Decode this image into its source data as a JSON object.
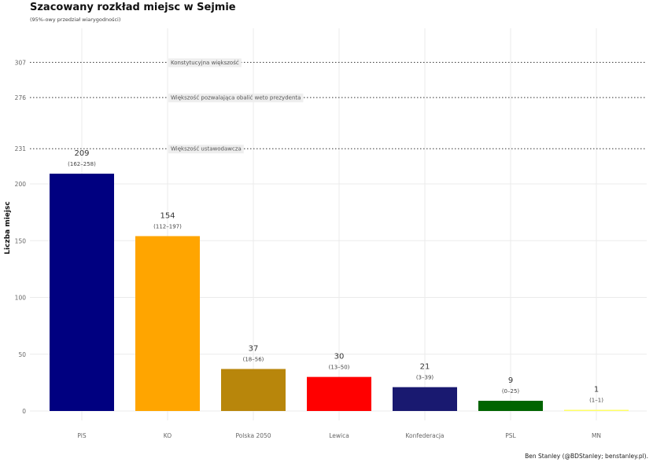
{
  "chart_data": {
    "type": "bar",
    "title": "Szacowany rozkład miejsc w Sejmie",
    "subtitle": "(95%-owy przedział wiarygodności)",
    "xlabel": "",
    "ylabel": "Liczba miejsc",
    "caption": "Ben Stanley (@BDStanley; benstanley.pl).",
    "ylim": [
      0,
      320
    ],
    "y_ticks": [
      0,
      50,
      100,
      150,
      200
    ],
    "grid": true,
    "categories": [
      "PiS",
      "KO",
      "Polska 2050",
      "Lewica",
      "Konfederacja",
      "PSL",
      "MN"
    ],
    "values": [
      209,
      154,
      37,
      30,
      21,
      9,
      1
    ],
    "intervals": [
      "(162–258)",
      "(112–197)",
      "(18–56)",
      "(13–50)",
      "(3–39)",
      "(0–25)",
      "(1–1)"
    ],
    "colors": [
      "#000080",
      "#FFA500",
      "#B8860B",
      "#FF0000",
      "#191970",
      "#006400",
      "#FFFF66"
    ],
    "reference_lines": [
      {
        "value": 307,
        "label": "Konstytucyjna większość"
      },
      {
        "value": 276,
        "label": "Większość pozwalająca obalić weto prezydenta"
      },
      {
        "value": 231,
        "label": "Większość ustawodawcza"
      }
    ]
  }
}
